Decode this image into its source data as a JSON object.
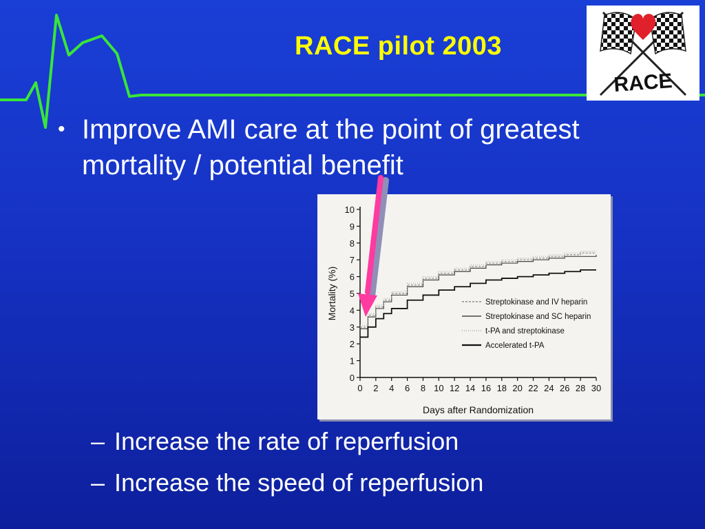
{
  "slide": {
    "title": "RACE pilot  2003",
    "logo_text": "RACE",
    "bullet": "Improve AMI care at the point of greatest mortality / potential benefit",
    "subbullets": [
      "Increase the rate of reperfusion",
      "Increase the speed of reperfusion"
    ],
    "colors": {
      "background": "#1632c4",
      "title": "#ffff00",
      "ekg_line": "#39e639",
      "arrow": "#ff3aa0"
    }
  },
  "chart_data": {
    "type": "line",
    "xlabel": "Days after Randomization",
    "ylabel": "Mortality (%)",
    "xlim": [
      0,
      30
    ],
    "ylim": [
      0,
      10
    ],
    "xticks": [
      0,
      2,
      4,
      6,
      8,
      10,
      12,
      14,
      16,
      18,
      20,
      22,
      24,
      26,
      28,
      30
    ],
    "yticks": [
      0,
      1,
      2,
      3,
      4,
      5,
      6,
      7,
      8,
      9,
      10
    ],
    "legend_position": "right-middle",
    "annotation": "arrow pointing to early mortality at day 1",
    "series": [
      {
        "name": "Streptokinase and IV heparin",
        "x": [
          0,
          1,
          2,
          3,
          4,
          6,
          8,
          10,
          12,
          14,
          16,
          18,
          20,
          22,
          24,
          26,
          28,
          30
        ],
        "y": [
          3.0,
          3.7,
          4.2,
          4.6,
          5.0,
          5.5,
          5.9,
          6.2,
          6.4,
          6.6,
          6.8,
          6.9,
          7.0,
          7.1,
          7.2,
          7.3,
          7.4,
          7.4
        ]
      },
      {
        "name": "Streptokinase and SC heparin",
        "x": [
          0,
          1,
          2,
          3,
          4,
          6,
          8,
          10,
          12,
          14,
          16,
          18,
          20,
          22,
          24,
          26,
          28,
          30
        ],
        "y": [
          2.9,
          3.6,
          4.1,
          4.5,
          4.9,
          5.4,
          5.8,
          6.1,
          6.3,
          6.5,
          6.7,
          6.8,
          6.9,
          7.0,
          7.1,
          7.2,
          7.2,
          7.3
        ]
      },
      {
        "name": "t-PA and streptokinase",
        "x": [
          0,
          1,
          2,
          3,
          4,
          6,
          8,
          10,
          12,
          14,
          16,
          18,
          20,
          22,
          24,
          26,
          28,
          30
        ],
        "y": [
          3.1,
          3.8,
          4.3,
          4.7,
          5.1,
          5.6,
          6.0,
          6.3,
          6.5,
          6.7,
          6.9,
          7.0,
          7.1,
          7.2,
          7.3,
          7.4,
          7.5,
          7.5
        ]
      },
      {
        "name": "Accelerated t-PA",
        "x": [
          0,
          1,
          2,
          3,
          4,
          6,
          8,
          10,
          12,
          14,
          16,
          18,
          20,
          22,
          24,
          26,
          28,
          30
        ],
        "y": [
          2.4,
          3.0,
          3.5,
          3.8,
          4.1,
          4.6,
          4.9,
          5.2,
          5.4,
          5.6,
          5.8,
          5.9,
          6.0,
          6.1,
          6.2,
          6.3,
          6.4,
          6.4
        ]
      }
    ]
  }
}
